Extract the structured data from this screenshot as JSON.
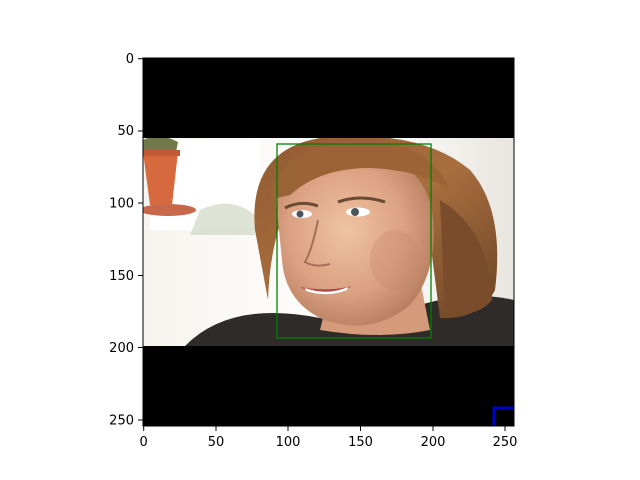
{
  "figure": {
    "x_ticks": [
      "0",
      "50",
      "100",
      "150",
      "200",
      "250"
    ],
    "y_ticks": [
      "0",
      "50",
      "100",
      "150",
      "200",
      "250"
    ],
    "colors": {
      "letterbox": "#000000",
      "face_box": "#008000",
      "corner_marker": "#0000cc"
    }
  },
  "image_content": {
    "subject": "woman with short brown hair smiling, looking to the left",
    "background": "bright white room with a terracotta flower pot on the left"
  }
}
